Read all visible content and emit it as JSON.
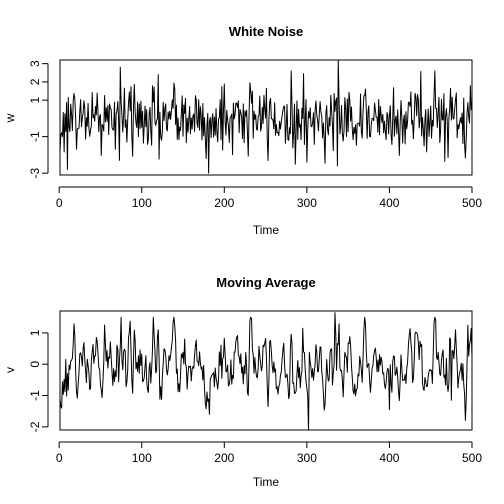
{
  "chart_data": [
    {
      "type": "line",
      "title": "White Noise",
      "xlabel": "Time",
      "ylabel": "w",
      "xlim": [
        1,
        500
      ],
      "ylim": [
        -3.1,
        3.2
      ],
      "xticks": [
        0,
        100,
        200,
        300,
        400,
        500
      ],
      "yticks": [
        -3,
        -1,
        1,
        2,
        3
      ],
      "grid": false,
      "legend": "none",
      "color": "#000000",
      "n_points": 500,
      "sample_values": [
        {
          "x": 1,
          "y": -1.8
        },
        {
          "x": 10,
          "y": -2.8
        },
        {
          "x": 74,
          "y": 2.8
        },
        {
          "x": 178,
          "y": -2.2
        },
        {
          "x": 181,
          "y": -3.0
        },
        {
          "x": 300,
          "y": -2.4
        },
        {
          "x": 338,
          "y": 3.2
        },
        {
          "x": 455,
          "y": 2.6
        },
        {
          "x": 500,
          "y": 0.7
        }
      ]
    },
    {
      "type": "line",
      "title": "Moving Average",
      "xlabel": "Time",
      "ylabel": "v",
      "xlim": [
        1,
        500
      ],
      "ylim": [
        -2.1,
        1.7
      ],
      "xticks": [
        0,
        100,
        200,
        300,
        400,
        500
      ],
      "yticks": [
        -2,
        -1,
        0,
        1
      ],
      "grid": false,
      "legend": "none",
      "color": "#000000",
      "n_points": 500,
      "sample_values": [
        {
          "x": 1,
          "y": -1.1
        },
        {
          "x": 3,
          "y": -1.4
        },
        {
          "x": 55,
          "y": 1.25
        },
        {
          "x": 120,
          "y": 1.1
        },
        {
          "x": 182,
          "y": -1.6
        },
        {
          "x": 302,
          "y": -2.1
        },
        {
          "x": 334,
          "y": 1.65
        },
        {
          "x": 400,
          "y": -1.45
        },
        {
          "x": 475,
          "y": -1.15
        },
        {
          "x": 495,
          "y": 1.25
        },
        {
          "x": 500,
          "y": 0.2
        }
      ]
    }
  ]
}
